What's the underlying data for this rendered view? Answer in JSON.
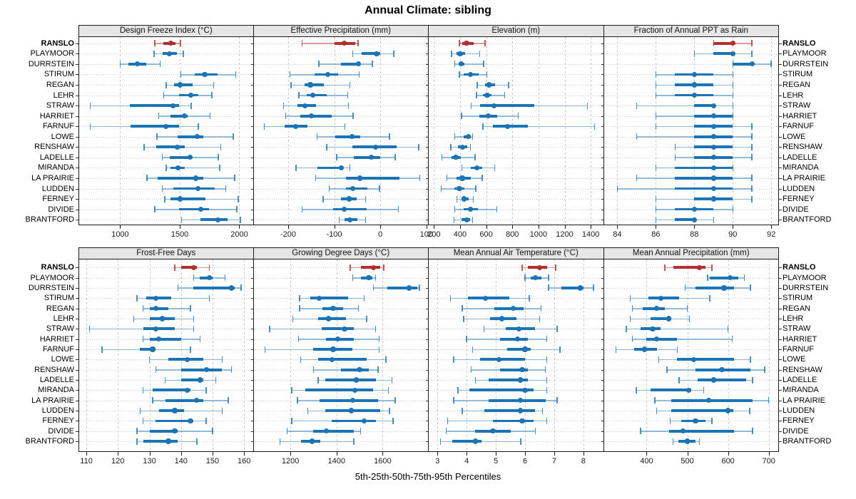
{
  "title": "Annual Climate: sibling",
  "footer": "5th-25th-50th-75th-95th Percentiles",
  "highlight_station": "RANSLO",
  "colors": {
    "highlight": "#b22f2b",
    "normal": "#1b74b5",
    "grid": "#cbcbcb",
    "strip_bg": "#e6e6e6",
    "border": "#1a1a1a",
    "text": "#000000"
  },
  "stations": [
    "RANSLO",
    "PLAYMOOR",
    "DURRSTEIN",
    "STIRUM",
    "REGAN",
    "LEHR",
    "STRAW",
    "HARRIET",
    "FARNUF",
    "LOWE",
    "RENSHAW",
    "LADELLE",
    "MIRANDA",
    "LA PRAIRIE",
    "LUDDEN",
    "FERNEY",
    "DIVIDE",
    "BRANTFORD"
  ],
  "percentiles": [
    5,
    25,
    50,
    75,
    95
  ],
  "chart_data": [
    {
      "type": "interval-dotplot",
      "title": "Design Freeze Index (°C)",
      "xlim": [
        650,
        2120
      ],
      "ticks": [
        1000,
        1500,
        2000
      ],
      "values": [
        [
          1290,
          1365,
          1425,
          1465,
          1505
        ],
        [
          1285,
          1355,
          1415,
          1475,
          1530
        ],
        [
          1000,
          1070,
          1145,
          1220,
          1335
        ],
        [
          1510,
          1625,
          1710,
          1815,
          1970
        ],
        [
          1385,
          1450,
          1505,
          1610,
          1785
        ],
        [
          1365,
          1495,
          1595,
          1655,
          1770
        ],
        [
          750,
          1080,
          1445,
          1495,
          1595
        ],
        [
          1325,
          1425,
          1540,
          1565,
          1755
        ],
        [
          750,
          1090,
          1385,
          1495,
          1655
        ],
        [
          1310,
          1485,
          1645,
          1695,
          1950
        ],
        [
          1200,
          1300,
          1480,
          1545,
          1845
        ],
        [
          1355,
          1415,
          1585,
          1605,
          1825
        ],
        [
          1385,
          1425,
          1485,
          1545,
          1835
        ],
        [
          1225,
          1315,
          1635,
          1695,
          1960
        ],
        [
          1355,
          1445,
          1655,
          1795,
          1885
        ],
        [
          1375,
          1425,
          1505,
          1715,
          1990
        ],
        [
          1290,
          1495,
          1675,
          1745,
          1980
        ],
        [
          1515,
          1675,
          1823,
          1903,
          2010
        ]
      ]
    },
    {
      "type": "interval-dotplot",
      "title": "Effective Precipitation (mm)",
      "xlim": [
        -275,
        105
      ],
      "ticks": [
        -200,
        -100,
        0,
        100
      ],
      "values": [
        [
          -170,
          -100,
          -78,
          -55,
          -48
        ],
        [
          -60,
          -40,
          -8,
          0,
          29
        ],
        [
          -133,
          -86,
          -48,
          -43,
          -17
        ],
        [
          -196,
          -142,
          -114,
          -91,
          -46
        ],
        [
          -194,
          -165,
          -152,
          -123,
          -66
        ],
        [
          -177,
          -159,
          -147,
          -117,
          -71
        ],
        [
          -210,
          -180,
          -163,
          -139,
          -69
        ],
        [
          -205,
          -174,
          -150,
          -105,
          -59
        ],
        [
          -252,
          -207,
          -184,
          -158,
          -77
        ],
        [
          -137,
          -97,
          -62,
          -43,
          20
        ],
        [
          -116,
          -61,
          -10,
          35,
          83
        ],
        [
          -95,
          -58,
          -20,
          0,
          32
        ],
        [
          -183,
          -136,
          -84,
          -80,
          -66
        ],
        [
          -140,
          -74,
          -44,
          42,
          86
        ],
        [
          -111,
          -74,
          -60,
          -28,
          -2
        ],
        [
          -124,
          -86,
          -67,
          -52,
          -32
        ],
        [
          -170,
          -103,
          -79,
          -29,
          39
        ],
        [
          -89,
          -78,
          -66,
          -50,
          -32
        ]
      ]
    },
    {
      "type": "interval-dotplot",
      "title": "Elevation (m)",
      "xlim": [
        160,
        1500
      ],
      "ticks": [
        200,
        400,
        600,
        800,
        1000,
        1200,
        1400
      ],
      "values": [
        [
          395,
          417,
          449,
          504,
          590
        ],
        [
          335,
          373,
          400,
          440,
          550
        ],
        [
          358,
          390,
          410,
          435,
          580
        ],
        [
          395,
          425,
          480,
          540,
          605
        ],
        [
          530,
          590,
          620,
          670,
          770
        ],
        [
          525,
          575,
          608,
          640,
          740
        ],
        [
          485,
          555,
          660,
          970,
          1375
        ],
        [
          410,
          545,
          615,
          685,
          845
        ],
        [
          575,
          650,
          765,
          920,
          1430
        ],
        [
          360,
          425,
          465,
          480,
          495
        ],
        [
          330,
          385,
          420,
          455,
          480
        ],
        [
          260,
          335,
          367,
          405,
          515
        ],
        [
          415,
          480,
          530,
          570,
          665
        ],
        [
          300,
          375,
          417,
          480,
          570
        ],
        [
          255,
          355,
          395,
          435,
          520
        ],
        [
          375,
          410,
          430,
          465,
          500
        ],
        [
          360,
          425,
          480,
          535,
          680
        ],
        [
          355,
          410,
          453,
          475,
          495
        ]
      ]
    },
    {
      "type": "interval-dotplot",
      "title": "Fraction of Annual PPT as Rain",
      "xlim": [
        83.3,
        92.4
      ],
      "ticks": [
        84,
        86,
        88,
        90,
        92
      ],
      "values": [
        [
          89,
          89,
          90,
          90,
          91
        ],
        [
          88,
          89,
          90,
          90,
          91
        ],
        [
          90,
          90,
          91,
          91,
          92
        ],
        [
          86,
          87,
          88,
          89,
          90
        ],
        [
          86,
          87,
          88,
          89,
          90
        ],
        [
          86,
          87,
          88,
          89,
          90
        ],
        [
          85,
          88,
          89,
          89,
          90
        ],
        [
          86,
          88,
          89,
          90,
          90
        ],
        [
          86,
          88,
          89,
          90,
          91
        ],
        [
          85,
          88,
          89,
          90,
          91
        ],
        [
          87,
          88,
          89,
          90,
          91
        ],
        [
          87,
          88,
          89,
          90,
          91
        ],
        [
          86,
          87,
          89,
          90,
          90
        ],
        [
          85,
          87,
          89,
          90,
          91
        ],
        [
          84,
          87,
          89,
          90,
          91
        ],
        [
          86,
          88,
          89,
          90,
          91
        ],
        [
          86,
          87,
          88,
          89,
          90
        ],
        [
          86,
          87,
          88,
          88,
          89
        ]
      ]
    },
    {
      "type": "interval-dotplot",
      "title": "Frost-Free Days",
      "xlim": [
        107.5,
        163
      ],
      "ticks": [
        110,
        120,
        130,
        140,
        150,
        160
      ],
      "values": [
        [
          138,
          140,
          144,
          145,
          149
        ],
        [
          144,
          146,
          149,
          150,
          154
        ],
        [
          139,
          144,
          156,
          157,
          159
        ],
        [
          126,
          129,
          132,
          137,
          149
        ],
        [
          128,
          130,
          132,
          136,
          143
        ],
        [
          125,
          130,
          134,
          138,
          144
        ],
        [
          111,
          128,
          132,
          138,
          144
        ],
        [
          128,
          130,
          133,
          140,
          146
        ],
        [
          115,
          127,
          131,
          132,
          143
        ],
        [
          130,
          136,
          142,
          147,
          153
        ],
        [
          132,
          140,
          148,
          153,
          156
        ],
        [
          135,
          140,
          146,
          147,
          151
        ],
        [
          128,
          131,
          142,
          143,
          148
        ],
        [
          131,
          135,
          145,
          147,
          155
        ],
        [
          127,
          133,
          138,
          141,
          153
        ],
        [
          128,
          132,
          143,
          144,
          148
        ],
        [
          126,
          130,
          138,
          139,
          150
        ],
        [
          126,
          128,
          136,
          139,
          145
        ]
      ]
    },
    {
      "type": "interval-dotplot",
      "title": "Growing Degree Days (°C)",
      "xlim": [
        1040,
        1800
      ],
      "ticks": [
        1200,
        1400,
        1600
      ],
      "values": [
        [
          1460,
          1505,
          1560,
          1590,
          1605
        ],
        [
          1470,
          1505,
          1540,
          1555,
          1570
        ],
        [
          1560,
          1620,
          1715,
          1750,
          1760
        ],
        [
          1240,
          1285,
          1325,
          1450,
          1520
        ],
        [
          1240,
          1340,
          1385,
          1430,
          1495
        ],
        [
          1210,
          1320,
          1365,
          1440,
          1530
        ],
        [
          1110,
          1335,
          1435,
          1475,
          1570
        ],
        [
          1235,
          1355,
          1405,
          1475,
          1585
        ],
        [
          1090,
          1300,
          1385,
          1470,
          1585
        ],
        [
          1245,
          1320,
          1380,
          1530,
          1615
        ],
        [
          1300,
          1420,
          1500,
          1540,
          1580
        ],
        [
          1320,
          1350,
          1485,
          1570,
          1640
        ],
        [
          1205,
          1265,
          1480,
          1560,
          1625
        ],
        [
          1230,
          1325,
          1470,
          1580,
          1655
        ],
        [
          1275,
          1350,
          1465,
          1590,
          1630
        ],
        [
          1205,
          1380,
          1520,
          1570,
          1645
        ],
        [
          1185,
          1300,
          1355,
          1475,
          1505
        ],
        [
          1155,
          1245,
          1295,
          1330,
          1475
        ]
      ]
    },
    {
      "type": "interval-dotplot",
      "title": "Mean Annual Air Temperature (°C)",
      "xlim": [
        2.7,
        8.7
      ],
      "ticks": [
        3,
        4,
        5,
        6,
        7,
        8
      ],
      "values": [
        [
          5.9,
          6.1,
          6.5,
          6.75,
          7.05
        ],
        [
          6.0,
          6.2,
          6.35,
          6.55,
          6.8
        ],
        [
          6.8,
          7.25,
          7.9,
          8.0,
          8.35
        ],
        [
          3.45,
          4.05,
          4.65,
          5.45,
          6.15
        ],
        [
          3.85,
          4.95,
          5.6,
          5.95,
          6.55
        ],
        [
          3.9,
          4.8,
          5.2,
          5.7,
          6.5
        ],
        [
          4.6,
          5.35,
          5.8,
          6.35,
          7.1
        ],
        [
          4.0,
          5.15,
          5.75,
          6.1,
          6.75
        ],
        [
          4.2,
          5.4,
          6.0,
          6.2,
          7.2
        ],
        [
          3.55,
          4.45,
          5.1,
          6.0,
          6.75
        ],
        [
          4.15,
          5.15,
          5.9,
          6.1,
          6.7
        ],
        [
          4.3,
          4.75,
          5.85,
          6.1,
          6.75
        ],
        [
          3.7,
          4.1,
          6.0,
          6.3,
          6.75
        ],
        [
          3.55,
          4.75,
          5.85,
          6.7,
          7.1
        ],
        [
          3.85,
          4.6,
          5.85,
          6.35,
          6.6
        ],
        [
          3.35,
          4.9,
          5.9,
          6.3,
          6.75
        ],
        [
          3.3,
          4.3,
          4.9,
          5.5,
          6.35
        ],
        [
          3.1,
          3.5,
          4.3,
          4.5,
          5.85
        ]
      ]
    },
    {
      "type": "interval-dotplot",
      "title": "Mean Annual Precipitation (mm)",
      "xlim": [
        295,
        725
      ],
      "ticks": [
        400,
        500,
        600,
        700
      ],
      "values": [
        [
          445,
          465,
          530,
          545,
          560
        ],
        [
          550,
          555,
          605,
          625,
          640
        ],
        [
          495,
          520,
          590,
          615,
          655
        ],
        [
          360,
          405,
          435,
          480,
          555
        ],
        [
          365,
          390,
          425,
          445,
          500
        ],
        [
          360,
          410,
          455,
          460,
          505
        ],
        [
          350,
          385,
          415,
          435,
          600
        ],
        [
          365,
          400,
          425,
          475,
          610
        ],
        [
          325,
          370,
          395,
          425,
          475
        ],
        [
          430,
          475,
          515,
          615,
          655
        ],
        [
          450,
          520,
          585,
          655,
          690
        ],
        [
          480,
          525,
          565,
          645,
          660
        ],
        [
          375,
          410,
          503,
          510,
          540
        ],
        [
          420,
          460,
          553,
          660,
          700
        ],
        [
          425,
          460,
          600,
          613,
          653
        ],
        [
          458,
          485,
          520,
          545,
          560
        ],
        [
          385,
          455,
          490,
          615,
          660
        ],
        [
          465,
          478,
          500,
          520,
          530
        ]
      ]
    }
  ]
}
